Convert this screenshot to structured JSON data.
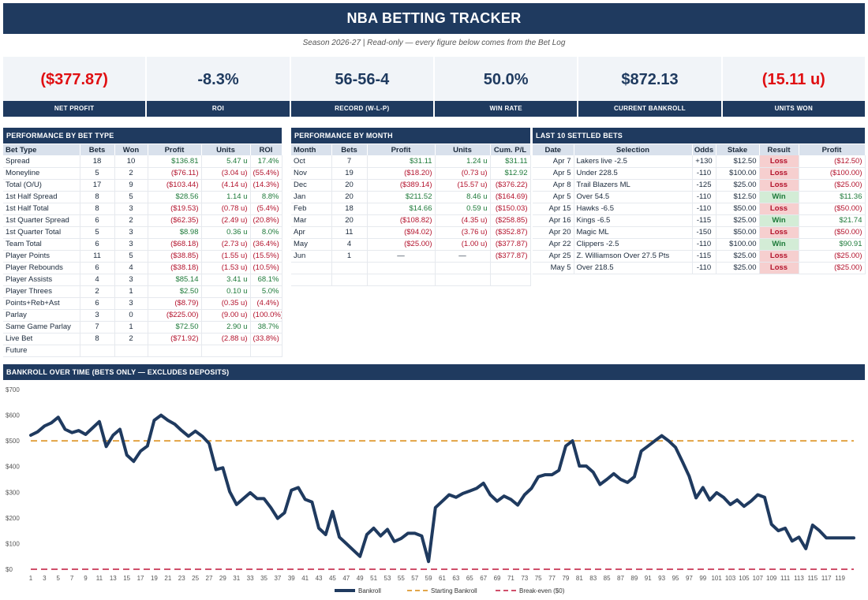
{
  "header": {
    "title": "NBA BETTING TRACKER",
    "subtitle": "Season 2026-27   |   Read-only — every figure below comes from the Bet Log"
  },
  "kpis": [
    {
      "value": "($377.87)",
      "label": "NET PROFIT",
      "negative": true
    },
    {
      "value": "-8.3%",
      "label": "ROI",
      "negative": false
    },
    {
      "value": "56-56-4",
      "label": "RECORD (W-L-P)",
      "negative": false
    },
    {
      "value": "50.0%",
      "label": "WIN RATE",
      "negative": false
    },
    {
      "value": "$872.13",
      "label": "CURRENT BANKROLL",
      "negative": false
    },
    {
      "value": "(15.11 u)",
      "label": "UNITS WON",
      "negative": true
    }
  ],
  "bet_type": {
    "title": "PERFORMANCE BY BET TYPE",
    "headers": [
      "Bet Type",
      "Bets",
      "Won",
      "Profit",
      "Units",
      "ROI"
    ],
    "rows": [
      [
        "Spread",
        "18",
        "10",
        "$136.81",
        "5.47 u",
        "17.4%"
      ],
      [
        "Moneyline",
        "5",
        "2",
        "($76.11)",
        "(3.04 u)",
        "(55.4%)"
      ],
      [
        "Total (O/U)",
        "17",
        "9",
        "($103.44)",
        "(4.14 u)",
        "(14.3%)"
      ],
      [
        "1st Half Spread",
        "8",
        "5",
        "$28.56",
        "1.14 u",
        "8.8%"
      ],
      [
        "1st Half Total",
        "8",
        "3",
        "($19.53)",
        "(0.78 u)",
        "(5.4%)"
      ],
      [
        "1st Quarter Spread",
        "6",
        "2",
        "($62.35)",
        "(2.49 u)",
        "(20.8%)"
      ],
      [
        "1st Quarter Total",
        "5",
        "3",
        "$8.98",
        "0.36 u",
        "8.0%"
      ],
      [
        "Team Total",
        "6",
        "3",
        "($68.18)",
        "(2.73 u)",
        "(36.4%)"
      ],
      [
        "Player Points",
        "11",
        "5",
        "($38.85)",
        "(1.55 u)",
        "(15.5%)"
      ],
      [
        "Player Rebounds",
        "6",
        "4",
        "($38.18)",
        "(1.53 u)",
        "(10.5%)"
      ],
      [
        "Player Assists",
        "4",
        "3",
        "$85.14",
        "3.41 u",
        "68.1%"
      ],
      [
        "Player Threes",
        "2",
        "1",
        "$2.50",
        "0.10 u",
        "5.0%"
      ],
      [
        "Points+Reb+Ast",
        "6",
        "3",
        "($8.79)",
        "(0.35 u)",
        "(4.4%)"
      ],
      [
        "Parlay",
        "3",
        "0",
        "($225.00)",
        "(9.00 u)",
        "(100.0%)"
      ],
      [
        "Same Game Parlay",
        "7",
        "1",
        "$72.50",
        "2.90 u",
        "38.7%"
      ],
      [
        "Live Bet",
        "8",
        "2",
        "($71.92)",
        "(2.88 u)",
        "(33.8%)"
      ],
      [
        "Future",
        "",
        "",
        "",
        "",
        ""
      ]
    ]
  },
  "by_month": {
    "title": "PERFORMANCE BY MONTH",
    "headers": [
      "Month",
      "Bets",
      "Profit",
      "Units",
      "Cum. P/L"
    ],
    "rows": [
      [
        "Oct",
        "7",
        "$31.11",
        "1.24 u",
        "$31.11"
      ],
      [
        "Nov",
        "19",
        "($18.20)",
        "(0.73 u)",
        "$12.92"
      ],
      [
        "Dec",
        "20",
        "($389.14)",
        "(15.57 u)",
        "($376.22)"
      ],
      [
        "Jan",
        "20",
        "$211.52",
        "8.46 u",
        "($164.69)"
      ],
      [
        "Feb",
        "18",
        "$14.66",
        "0.59 u",
        "($150.03)"
      ],
      [
        "Mar",
        "20",
        "($108.82)",
        "(4.35 u)",
        "($258.85)"
      ],
      [
        "Apr",
        "11",
        "($94.02)",
        "(3.76 u)",
        "($352.87)"
      ],
      [
        "May",
        "4",
        "($25.00)",
        "(1.00 u)",
        "($377.87)"
      ],
      [
        "Jun",
        "1",
        "—",
        "—",
        "($377.87)"
      ],
      [
        "",
        "",
        "",
        "",
        ""
      ],
      [
        "",
        "",
        "",
        "",
        ""
      ]
    ]
  },
  "last10": {
    "title": "LAST 10 SETTLED BETS",
    "headers": [
      "Date",
      "Selection",
      "Odds",
      "Stake",
      "Result",
      "Profit"
    ],
    "rows": [
      [
        "Apr 7",
        "Lakers live -2.5",
        "+130",
        "$12.50",
        "Loss",
        "($12.50)"
      ],
      [
        "Apr 5",
        "Under 228.5",
        "-110",
        "$100.00",
        "Loss",
        "($100.00)"
      ],
      [
        "Apr 8",
        "Trail Blazers ML",
        "-125",
        "$25.00",
        "Loss",
        "($25.00)"
      ],
      [
        "Apr 5",
        "Over 54.5",
        "-110",
        "$12.50",
        "Win",
        "$11.36"
      ],
      [
        "Apr 15",
        "Hawks -6.5",
        "-110",
        "$50.00",
        "Loss",
        "($50.00)"
      ],
      [
        "Apr 16",
        "Kings -6.5",
        "-115",
        "$25.00",
        "Win",
        "$21.74"
      ],
      [
        "Apr 20",
        "Magic ML",
        "-150",
        "$50.00",
        "Loss",
        "($50.00)"
      ],
      [
        "Apr 22",
        "Clippers -2.5",
        "-110",
        "$100.00",
        "Win",
        "$90.91"
      ],
      [
        "Apr 25",
        "Z. Williamson Over 27.5 Pts",
        "-115",
        "$25.00",
        "Loss",
        "($25.00)"
      ],
      [
        "May 5",
        "Over 218.5",
        "-110",
        "$25.00",
        "Loss",
        "($25.00)"
      ]
    ]
  },
  "chart_data": {
    "type": "line",
    "title": "BANKROLL OVER TIME  (BETS ONLY — EXCLUDES DEPOSITS)",
    "ylim": [
      0,
      700
    ],
    "yticks": [
      "$0",
      "$100",
      "$200",
      "$300",
      "$400",
      "$500",
      "$600",
      "$700"
    ],
    "x_tick_labels": [
      "1",
      "3",
      "5",
      "7",
      "9",
      "11",
      "13",
      "15",
      "17",
      "19",
      "21",
      "23",
      "25",
      "27",
      "29",
      "31",
      "33",
      "35",
      "37",
      "39",
      "41",
      "43",
      "45",
      "47",
      "49",
      "51",
      "53",
      "55",
      "57",
      "59",
      "61",
      "63",
      "65",
      "67",
      "69",
      "71",
      "73",
      "75",
      "77",
      "79",
      "81",
      "83",
      "85",
      "87",
      "89",
      "91",
      "93",
      "95",
      "97",
      "99",
      "101",
      "103",
      "105",
      "107",
      "109",
      "111",
      "113",
      "115",
      "117",
      "119"
    ],
    "legend": [
      "Bankroll",
      "Starting Bankroll",
      "Break-even ($0)"
    ],
    "legend_position": "bottom",
    "colors": {
      "bankroll": "#1f3a5f",
      "starting": "#d9890f",
      "breakeven": "#c0163a"
    },
    "starting_bankroll": 500,
    "break_even": 0,
    "bankroll": [
      522,
      535,
      558,
      570,
      592,
      545,
      532,
      540,
      525,
      550,
      575,
      478,
      522,
      545,
      445,
      420,
      460,
      480,
      580,
      600,
      580,
      565,
      540,
      518,
      538,
      518,
      490,
      388,
      395,
      302,
      252,
      275,
      298,
      275,
      275,
      240,
      198,
      220,
      308,
      318,
      272,
      262,
      160,
      135,
      225,
      125,
      100,
      75,
      50,
      135,
      160,
      130,
      155,
      108,
      120,
      140,
      140,
      130,
      30,
      240,
      265,
      290,
      280,
      295,
      305,
      315,
      335,
      290,
      265,
      285,
      272,
      250,
      290,
      315,
      360,
      368,
      368,
      385,
      480,
      500,
      402,
      402,
      378,
      330,
      350,
      372,
      350,
      338,
      360,
      460,
      480,
      500,
      520,
      500,
      475,
      420,
      362,
      278,
      318,
      270,
      298,
      280,
      252,
      270,
      245,
      265,
      290,
      280,
      175,
      150,
      160,
      110,
      125,
      80,
      172,
      150,
      122,
      122,
      122,
      122,
      122
    ]
  }
}
